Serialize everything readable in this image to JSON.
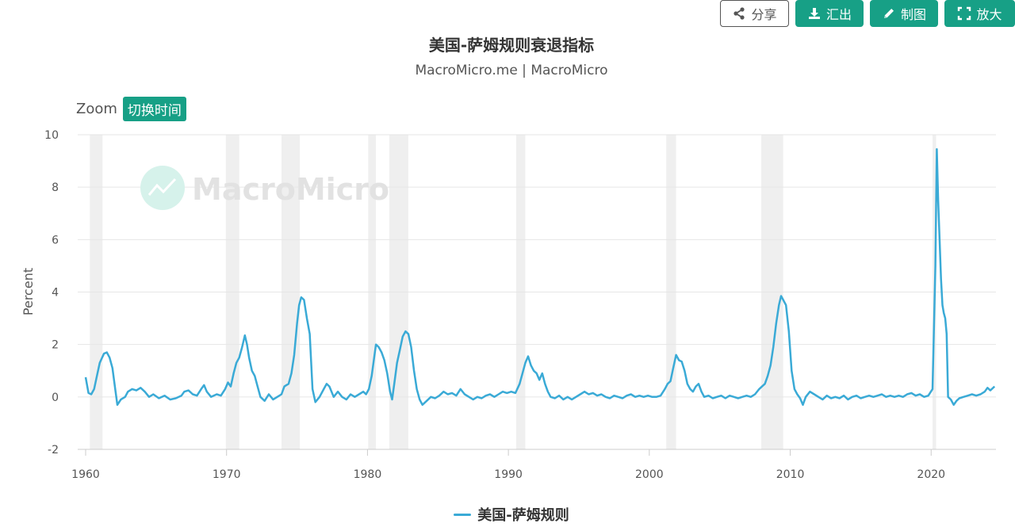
{
  "toolbar": {
    "share_label": "分享",
    "export_label": "汇出",
    "draw_label": "制图",
    "zoom_label": "放大"
  },
  "header": {
    "title": "美国-萨姆规则衰退指标",
    "subtitle": "MacroMicro.me | MacroMicro"
  },
  "zoom": {
    "label": "Zoom",
    "switch_label": "切换时间"
  },
  "watermark": "MacroMicro",
  "colors": {
    "series": "#3aaad6",
    "accent": "#17a086",
    "recession_band": "#efefef",
    "grid": "#e6e6e6"
  },
  "chart_data": {
    "type": "line",
    "title": "美国-萨姆规则衰退指标",
    "subtitle": "MacroMicro.me | MacroMicro",
    "xlabel": "",
    "ylabel": "Percent",
    "xlim": [
      1960,
      2024.6
    ],
    "ylim": [
      -2,
      10
    ],
    "x_ticks": [
      "1960",
      "1970",
      "1980",
      "1990",
      "2000",
      "2010",
      "2020"
    ],
    "y_ticks": [
      "-2",
      "0",
      "2",
      "4",
      "6",
      "8",
      "10"
    ],
    "grid": true,
    "legend": "bottom-center",
    "recessions": [
      [
        1960.3,
        1961.2
      ],
      [
        1969.95,
        1970.9
      ],
      [
        1973.9,
        1975.2
      ],
      [
        1980.05,
        1980.6
      ],
      [
        1981.55,
        1982.9
      ],
      [
        1990.55,
        1991.2
      ],
      [
        2001.2,
        2001.9
      ],
      [
        2007.95,
        2009.5
      ],
      [
        2020.1,
        2020.35
      ]
    ],
    "series": [
      {
        "name": "美国-萨姆规则",
        "points": [
          [
            1960.0,
            0.75
          ],
          [
            1960.2,
            0.15
          ],
          [
            1960.4,
            0.1
          ],
          [
            1960.6,
            0.3
          ],
          [
            1960.8,
            0.8
          ],
          [
            1961.0,
            1.3
          ],
          [
            1961.3,
            1.65
          ],
          [
            1961.5,
            1.7
          ],
          [
            1961.7,
            1.5
          ],
          [
            1961.9,
            1.1
          ],
          [
            1962.1,
            0.3
          ],
          [
            1962.25,
            -0.3
          ],
          [
            1962.5,
            -0.1
          ],
          [
            1962.8,
            0.0
          ],
          [
            1963.0,
            0.2
          ],
          [
            1963.3,
            0.3
          ],
          [
            1963.6,
            0.25
          ],
          [
            1963.9,
            0.35
          ],
          [
            1964.2,
            0.2
          ],
          [
            1964.5,
            0.0
          ],
          [
            1964.8,
            0.1
          ],
          [
            1965.2,
            -0.05
          ],
          [
            1965.6,
            0.05
          ],
          [
            1966.0,
            -0.1
          ],
          [
            1966.4,
            -0.05
          ],
          [
            1966.8,
            0.05
          ],
          [
            1967.0,
            0.2
          ],
          [
            1967.3,
            0.25
          ],
          [
            1967.6,
            0.1
          ],
          [
            1967.9,
            0.05
          ],
          [
            1968.2,
            0.3
          ],
          [
            1968.4,
            0.45
          ],
          [
            1968.6,
            0.2
          ],
          [
            1968.9,
            0.0
          ],
          [
            1969.3,
            0.1
          ],
          [
            1969.6,
            0.05
          ],
          [
            1969.9,
            0.3
          ],
          [
            1970.1,
            0.55
          ],
          [
            1970.3,
            0.4
          ],
          [
            1970.5,
            0.9
          ],
          [
            1970.7,
            1.3
          ],
          [
            1970.9,
            1.5
          ],
          [
            1971.1,
            1.9
          ],
          [
            1971.3,
            2.35
          ],
          [
            1971.45,
            2.0
          ],
          [
            1971.6,
            1.5
          ],
          [
            1971.8,
            1.0
          ],
          [
            1972.0,
            0.8
          ],
          [
            1972.2,
            0.4
          ],
          [
            1972.4,
            0.0
          ],
          [
            1972.7,
            -0.15
          ],
          [
            1973.0,
            0.1
          ],
          [
            1973.3,
            -0.1
          ],
          [
            1973.6,
            0.0
          ],
          [
            1973.9,
            0.1
          ],
          [
            1974.1,
            0.4
          ],
          [
            1974.4,
            0.5
          ],
          [
            1974.6,
            0.9
          ],
          [
            1974.8,
            1.6
          ],
          [
            1975.0,
            2.8
          ],
          [
            1975.15,
            3.5
          ],
          [
            1975.3,
            3.8
          ],
          [
            1975.5,
            3.7
          ],
          [
            1975.7,
            3.0
          ],
          [
            1975.9,
            2.4
          ],
          [
            1976.1,
            0.3
          ],
          [
            1976.3,
            -0.2
          ],
          [
            1976.6,
            0.0
          ],
          [
            1976.9,
            0.3
          ],
          [
            1977.1,
            0.5
          ],
          [
            1977.3,
            0.4
          ],
          [
            1977.6,
            0.0
          ],
          [
            1977.9,
            0.2
          ],
          [
            1978.2,
            0.0
          ],
          [
            1978.5,
            -0.1
          ],
          [
            1978.8,
            0.1
          ],
          [
            1979.1,
            0.0
          ],
          [
            1979.4,
            0.1
          ],
          [
            1979.7,
            0.2
          ],
          [
            1979.9,
            0.1
          ],
          [
            1980.1,
            0.3
          ],
          [
            1980.3,
            0.8
          ],
          [
            1980.5,
            1.6
          ],
          [
            1980.6,
            2.0
          ],
          [
            1980.8,
            1.9
          ],
          [
            1981.0,
            1.7
          ],
          [
            1981.2,
            1.4
          ],
          [
            1981.4,
            0.9
          ],
          [
            1981.6,
            0.2
          ],
          [
            1981.75,
            -0.1
          ],
          [
            1981.9,
            0.5
          ],
          [
            1982.1,
            1.3
          ],
          [
            1982.3,
            1.8
          ],
          [
            1982.5,
            2.3
          ],
          [
            1982.7,
            2.5
          ],
          [
            1982.9,
            2.4
          ],
          [
            1983.1,
            1.9
          ],
          [
            1983.3,
            1.0
          ],
          [
            1983.5,
            0.3
          ],
          [
            1983.7,
            -0.1
          ],
          [
            1983.9,
            -0.3
          ],
          [
            1984.2,
            -0.15
          ],
          [
            1984.5,
            0.0
          ],
          [
            1984.8,
            -0.05
          ],
          [
            1985.1,
            0.05
          ],
          [
            1985.4,
            0.2
          ],
          [
            1985.7,
            0.1
          ],
          [
            1986.0,
            0.15
          ],
          [
            1986.3,
            0.05
          ],
          [
            1986.6,
            0.3
          ],
          [
            1986.9,
            0.1
          ],
          [
            1987.2,
            0.0
          ],
          [
            1987.5,
            -0.1
          ],
          [
            1987.8,
            0.0
          ],
          [
            1988.1,
            -0.05
          ],
          [
            1988.4,
            0.05
          ],
          [
            1988.7,
            0.1
          ],
          [
            1989.0,
            0.0
          ],
          [
            1989.3,
            0.1
          ],
          [
            1989.6,
            0.2
          ],
          [
            1989.9,
            0.15
          ],
          [
            1990.2,
            0.2
          ],
          [
            1990.5,
            0.15
          ],
          [
            1990.8,
            0.5
          ],
          [
            1991.0,
            0.9
          ],
          [
            1991.2,
            1.3
          ],
          [
            1991.4,
            1.55
          ],
          [
            1991.6,
            1.2
          ],
          [
            1991.8,
            1.0
          ],
          [
            1992.0,
            0.9
          ],
          [
            1992.2,
            0.65
          ],
          [
            1992.4,
            0.9
          ],
          [
            1992.6,
            0.5
          ],
          [
            1992.8,
            0.2
          ],
          [
            1993.0,
            0.0
          ],
          [
            1993.3,
            -0.05
          ],
          [
            1993.6,
            0.05
          ],
          [
            1993.9,
            -0.1
          ],
          [
            1994.2,
            0.0
          ],
          [
            1994.5,
            -0.1
          ],
          [
            1994.8,
            0.0
          ],
          [
            1995.1,
            0.1
          ],
          [
            1995.4,
            0.2
          ],
          [
            1995.7,
            0.1
          ],
          [
            1996.0,
            0.15
          ],
          [
            1996.3,
            0.05
          ],
          [
            1996.6,
            0.1
          ],
          [
            1996.9,
            0.0
          ],
          [
            1997.2,
            -0.05
          ],
          [
            1997.5,
            0.05
          ],
          [
            1997.8,
            0.0
          ],
          [
            1998.1,
            -0.05
          ],
          [
            1998.4,
            0.05
          ],
          [
            1998.7,
            0.1
          ],
          [
            1999.0,
            0.0
          ],
          [
            1999.3,
            0.05
          ],
          [
            1999.6,
            0.0
          ],
          [
            1999.9,
            0.05
          ],
          [
            2000.2,
            0.0
          ],
          [
            2000.5,
            0.0
          ],
          [
            2000.8,
            0.05
          ],
          [
            2001.1,
            0.3
          ],
          [
            2001.3,
            0.5
          ],
          [
            2001.5,
            0.6
          ],
          [
            2001.7,
            1.1
          ],
          [
            2001.9,
            1.6
          ],
          [
            2002.1,
            1.4
          ],
          [
            2002.3,
            1.35
          ],
          [
            2002.5,
            1.0
          ],
          [
            2002.7,
            0.5
          ],
          [
            2002.9,
            0.3
          ],
          [
            2003.1,
            0.2
          ],
          [
            2003.3,
            0.4
          ],
          [
            2003.5,
            0.5
          ],
          [
            2003.7,
            0.2
          ],
          [
            2003.9,
            0.0
          ],
          [
            2004.2,
            0.05
          ],
          [
            2004.5,
            -0.05
          ],
          [
            2004.8,
            0.0
          ],
          [
            2005.1,
            0.05
          ],
          [
            2005.4,
            -0.05
          ],
          [
            2005.7,
            0.05
          ],
          [
            2006.0,
            0.0
          ],
          [
            2006.3,
            -0.05
          ],
          [
            2006.6,
            0.0
          ],
          [
            2006.9,
            0.05
          ],
          [
            2007.2,
            0.0
          ],
          [
            2007.5,
            0.1
          ],
          [
            2007.8,
            0.3
          ],
          [
            2008.0,
            0.4
          ],
          [
            2008.2,
            0.5
          ],
          [
            2008.4,
            0.8
          ],
          [
            2008.6,
            1.2
          ],
          [
            2008.8,
            1.9
          ],
          [
            2009.0,
            2.8
          ],
          [
            2009.2,
            3.5
          ],
          [
            2009.35,
            3.85
          ],
          [
            2009.5,
            3.7
          ],
          [
            2009.7,
            3.5
          ],
          [
            2009.9,
            2.5
          ],
          [
            2010.1,
            1.0
          ],
          [
            2010.3,
            0.3
          ],
          [
            2010.5,
            0.1
          ],
          [
            2010.7,
            -0.05
          ],
          [
            2010.9,
            -0.3
          ],
          [
            2011.1,
            0.0
          ],
          [
            2011.4,
            0.2
          ],
          [
            2011.7,
            0.1
          ],
          [
            2012.0,
            0.0
          ],
          [
            2012.3,
            -0.1
          ],
          [
            2012.6,
            0.05
          ],
          [
            2012.9,
            -0.05
          ],
          [
            2013.2,
            0.0
          ],
          [
            2013.5,
            -0.05
          ],
          [
            2013.8,
            0.05
          ],
          [
            2014.1,
            -0.1
          ],
          [
            2014.4,
            0.0
          ],
          [
            2014.7,
            0.05
          ],
          [
            2015.0,
            -0.05
          ],
          [
            2015.3,
            0.0
          ],
          [
            2015.6,
            0.05
          ],
          [
            2015.9,
            0.0
          ],
          [
            2016.2,
            0.05
          ],
          [
            2016.5,
            0.1
          ],
          [
            2016.8,
            0.0
          ],
          [
            2017.1,
            0.05
          ],
          [
            2017.4,
            0.0
          ],
          [
            2017.7,
            0.05
          ],
          [
            2018.0,
            0.0
          ],
          [
            2018.3,
            0.1
          ],
          [
            2018.6,
            0.15
          ],
          [
            2018.9,
            0.05
          ],
          [
            2019.2,
            0.1
          ],
          [
            2019.5,
            0.0
          ],
          [
            2019.8,
            0.05
          ],
          [
            2020.1,
            0.3
          ],
          [
            2020.3,
            5.0
          ],
          [
            2020.4,
            9.45
          ],
          [
            2020.5,
            7.5
          ],
          [
            2020.6,
            6.0
          ],
          [
            2020.7,
            4.5
          ],
          [
            2020.8,
            3.5
          ],
          [
            2020.9,
            3.2
          ],
          [
            2021.0,
            3.0
          ],
          [
            2021.1,
            2.4
          ],
          [
            2021.2,
            0.0
          ],
          [
            2021.4,
            -0.1
          ],
          [
            2021.6,
            -0.3
          ],
          [
            2021.8,
            -0.15
          ],
          [
            2022.0,
            -0.05
          ],
          [
            2022.3,
            0.0
          ],
          [
            2022.6,
            0.05
          ],
          [
            2022.9,
            0.1
          ],
          [
            2023.2,
            0.05
          ],
          [
            2023.5,
            0.1
          ],
          [
            2023.8,
            0.2
          ],
          [
            2024.0,
            0.35
          ],
          [
            2024.2,
            0.25
          ],
          [
            2024.5,
            0.4
          ]
        ]
      }
    ]
  }
}
